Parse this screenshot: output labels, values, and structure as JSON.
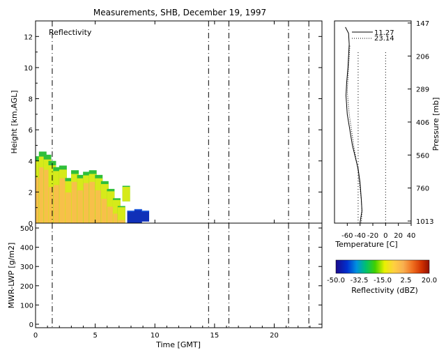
{
  "title": "Measurements, SHB, December 19, 1997",
  "chart_data": [
    {
      "name": "reflectivity-panel",
      "type": "heatmap",
      "label": "Reflectivity",
      "ylabel": "Height [km,AGL]",
      "xlim": [
        0,
        24
      ],
      "ylim": [
        0,
        13
      ],
      "yticks": [
        0,
        2,
        4,
        6,
        8,
        10,
        12
      ],
      "vlines": [
        1.4,
        14.5,
        16.2,
        21.2,
        22.9
      ],
      "cloud_columns": [
        {
          "x": 0.3,
          "top": 4.3,
          "bottom": 0.0,
          "core": 0.8
        },
        {
          "x": 0.6,
          "top": 4.6,
          "bottom": 0.0,
          "core": 0.9
        },
        {
          "x": 1.0,
          "top": 4.4,
          "bottom": 0.0,
          "core": 0.9
        },
        {
          "x": 1.4,
          "top": 4.0,
          "bottom": 0.0,
          "core": 0.7
        },
        {
          "x": 1.8,
          "top": 3.6,
          "bottom": 0.0,
          "core": 0.8
        },
        {
          "x": 2.3,
          "top": 3.7,
          "bottom": 0.0,
          "core": 0.9
        },
        {
          "x": 2.8,
          "top": 2.9,
          "bottom": 0.0,
          "core": 0.8
        },
        {
          "x": 3.3,
          "top": 3.4,
          "bottom": 0.0,
          "core": 0.9
        },
        {
          "x": 3.8,
          "top": 3.1,
          "bottom": 0.0,
          "core": 0.8
        },
        {
          "x": 4.3,
          "top": 3.3,
          "bottom": 0.0,
          "core": 0.9
        },
        {
          "x": 4.8,
          "top": 3.4,
          "bottom": 0.0,
          "core": 0.9
        },
        {
          "x": 5.3,
          "top": 3.1,
          "bottom": 0.0,
          "core": 0.8
        },
        {
          "x": 5.8,
          "top": 2.7,
          "bottom": 0.0,
          "core": 0.7
        },
        {
          "x": 6.3,
          "top": 2.2,
          "bottom": 0.0,
          "core": 0.6
        },
        {
          "x": 6.8,
          "top": 1.6,
          "bottom": 0.0,
          "core": 0.5
        },
        {
          "x": 7.2,
          "top": 1.1,
          "bottom": 0.0,
          "core": 0.3
        },
        {
          "x": 7.6,
          "top": 2.4,
          "bottom": 1.4,
          "core": 0.1
        },
        {
          "x": 8.0,
          "top": 0.8,
          "bottom": 0.0,
          "core": 0.0
        },
        {
          "x": 8.6,
          "top": 0.9,
          "bottom": 0.0,
          "core": 0.0
        },
        {
          "x": 9.2,
          "top": 0.8,
          "bottom": 0.1,
          "core": 0.0
        }
      ]
    },
    {
      "name": "temperature-profile",
      "type": "line",
      "xlabel": "Temperature [C]",
      "ylabel": "Pressure [mb]",
      "xlim": [
        -80,
        40
      ],
      "xticks": [
        -60,
        -40,
        -20,
        0,
        20,
        40
      ],
      "pressure_ticks": [
        "147",
        "206",
        "289",
        "406",
        "560",
        "760",
        "1013"
      ],
      "legend": [
        {
          "label": "11.27",
          "style": "solid"
        },
        {
          "label": "23.14",
          "style": "dotted"
        }
      ],
      "vlines": [
        -43,
        0
      ],
      "series": [
        {
          "label": "11.27",
          "style": "solid",
          "points": [
            [
              -63,
              12.6
            ],
            [
              -58,
              12.2
            ],
            [
              -57,
              11.5
            ],
            [
              -59,
              10.0
            ],
            [
              -61,
              9.0
            ],
            [
              -62,
              8.2
            ],
            [
              -60,
              7.0
            ],
            [
              -52,
              5.0
            ],
            [
              -43,
              3.5
            ],
            [
              -40,
              2.6
            ],
            [
              -38,
              1.5
            ],
            [
              -37,
              0.8
            ],
            [
              -39,
              0.3
            ],
            [
              -40,
              0.0
            ]
          ]
        },
        {
          "label": "23.14",
          "style": "dotted",
          "points": [
            [
              -56,
              11.4
            ],
            [
              -58,
              10.0
            ],
            [
              -60,
              8.5
            ],
            [
              -57,
              7.0
            ],
            [
              -50,
              5.0
            ],
            [
              -44,
              3.6
            ],
            [
              -41,
              2.5
            ],
            [
              -38,
              1.5
            ],
            [
              -37,
              0.7
            ],
            [
              -38,
              0.0
            ]
          ]
        }
      ]
    },
    {
      "name": "lwp-panel",
      "type": "line",
      "xlabel": "Time [GMT]",
      "ylabel": "MWR-LWP [g/m2]",
      "xlim": [
        0,
        24
      ],
      "ylim": [
        0,
        500
      ],
      "xticks": [
        0,
        5,
        10,
        15,
        20
      ],
      "yticks": [
        0,
        100,
        200,
        300,
        400,
        500
      ],
      "vlines": [
        1.4,
        14.5,
        16.2,
        21.2,
        22.9
      ],
      "series": []
    },
    {
      "name": "colorbar",
      "type": "heatmap",
      "label": "Reflectivity (dBZ)",
      "ticks": [
        "-50.0",
        "-32.5",
        "-15.0",
        "2.5",
        "20.0"
      ],
      "range": [
        -50,
        20
      ]
    }
  ]
}
